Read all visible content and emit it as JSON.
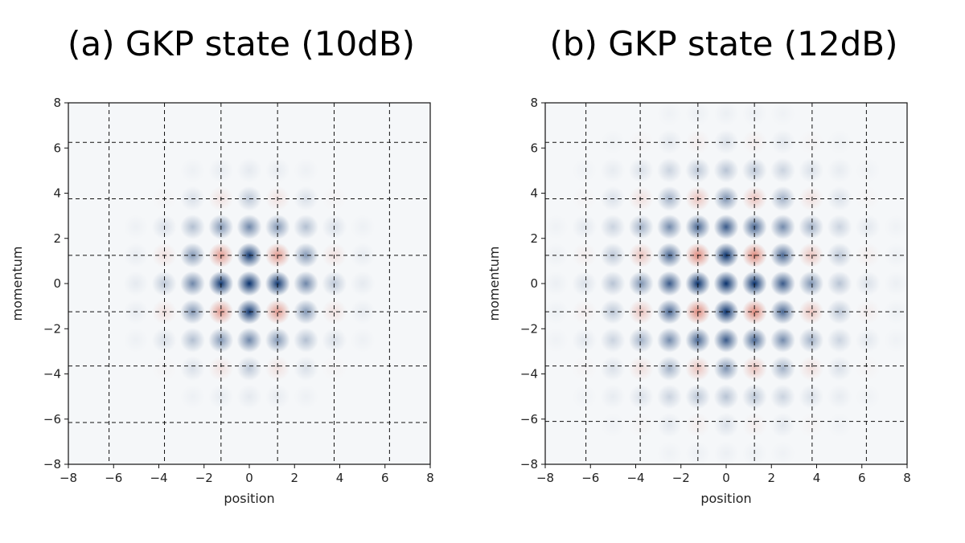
{
  "chart_data": [
    {
      "type": "heatmap",
      "title": "(a) GKP state (10dB)",
      "xlabel": "position",
      "ylabel": "momentum",
      "xlim": [
        -8,
        8
      ],
      "ylim": [
        -8,
        8
      ],
      "xticks": [
        "−8",
        "−6",
        "−4",
        "−2",
        "0",
        "2",
        "4",
        "6",
        "8"
      ],
      "yticks": [
        "8",
        "6",
        "4",
        "2",
        "0",
        "−2",
        "−4",
        "−6",
        "−8"
      ],
      "colormap": "RdBu",
      "positive_color": "#08306b",
      "negative_color": "#d6604d",
      "background_color": "#f5f7f9",
      "peak_spacing": 1.2533,
      "envelope_sigma": 2.1,
      "grid_lines": {
        "style": "dashed",
        "x": [
          -6.2,
          -3.75,
          -1.25,
          1.25,
          3.75,
          6.2
        ],
        "y": [
          6.25,
          3.75,
          1.25,
          -1.25,
          -3.65,
          -6.15
        ]
      }
    },
    {
      "type": "heatmap",
      "title": "(b) GKP state (12dB)",
      "xlabel": "position",
      "ylabel": "momentum",
      "xlim": [
        -8,
        8
      ],
      "ylim": [
        -8,
        8
      ],
      "xticks": [
        "−8",
        "−6",
        "−4",
        "−2",
        "0",
        "2",
        "4",
        "6",
        "8"
      ],
      "yticks": [
        "8",
        "6",
        "4",
        "2",
        "0",
        "−2",
        "−4",
        "−6",
        "−8"
      ],
      "colormap": "RdBu",
      "positive_color": "#08306b",
      "negative_color": "#d6604d",
      "background_color": "#f5f7f9",
      "peak_spacing": 1.2533,
      "envelope_sigma": 2.9,
      "grid_lines": {
        "style": "dashed",
        "x": [
          -6.2,
          -3.8,
          -1.25,
          1.25,
          3.8,
          6.2
        ],
        "y": [
          6.25,
          3.75,
          1.25,
          -1.25,
          -3.65,
          -6.1
        ]
      }
    }
  ]
}
